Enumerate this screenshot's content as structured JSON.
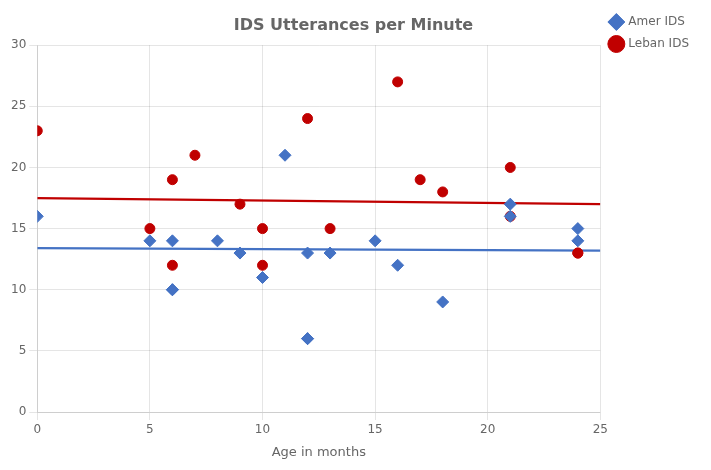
{
  "chart_data": {
    "type": "scatter",
    "title": "IDS Utterances per Minute",
    "xlabel": "Age in months",
    "xlim": [
      0,
      25
    ],
    "ylim": [
      0,
      30
    ],
    "xticks": [
      0,
      5,
      10,
      15,
      20,
      25
    ],
    "yticks": [
      0,
      5,
      10,
      15,
      20,
      25,
      30
    ],
    "grid": true,
    "legend": "right",
    "series": [
      {
        "name": "Amer IDS",
        "type": "scatter",
        "color": "#4472C4",
        "marker": "diamond",
        "x": [
          0,
          5,
          6,
          6,
          6,
          8,
          9,
          10,
          11,
          12,
          12,
          12,
          13,
          15,
          16,
          18,
          21,
          21,
          24,
          24
        ],
        "values": [
          16,
          14,
          14,
          10,
          10,
          14,
          13,
          11,
          21,
          6,
          6,
          13,
          13,
          14,
          12,
          9,
          17,
          16,
          14,
          15
        ]
      },
      {
        "name": "Leban IDS",
        "type": "scatter",
        "color": "#C00000",
        "marker": "circle",
        "x": [
          0,
          5,
          6,
          6,
          7,
          9,
          10,
          10,
          12,
          13,
          16,
          17,
          18,
          21,
          21,
          24,
          24
        ],
        "values": [
          23,
          15,
          19,
          12,
          21,
          17,
          12,
          15,
          24,
          15,
          27,
          19,
          18,
          20,
          16,
          13,
          13
        ]
      },
      {
        "type": "line",
        "color": "#4472C4",
        "line_style": "solid",
        "x": [
          0,
          25
        ],
        "values": [
          13.4,
          13.2
        ]
      },
      {
        "type": "line",
        "color": "#C00000",
        "line_style": "solid",
        "x": [
          0,
          25
        ],
        "values": [
          17.5,
          17.0
        ]
      }
    ]
  }
}
